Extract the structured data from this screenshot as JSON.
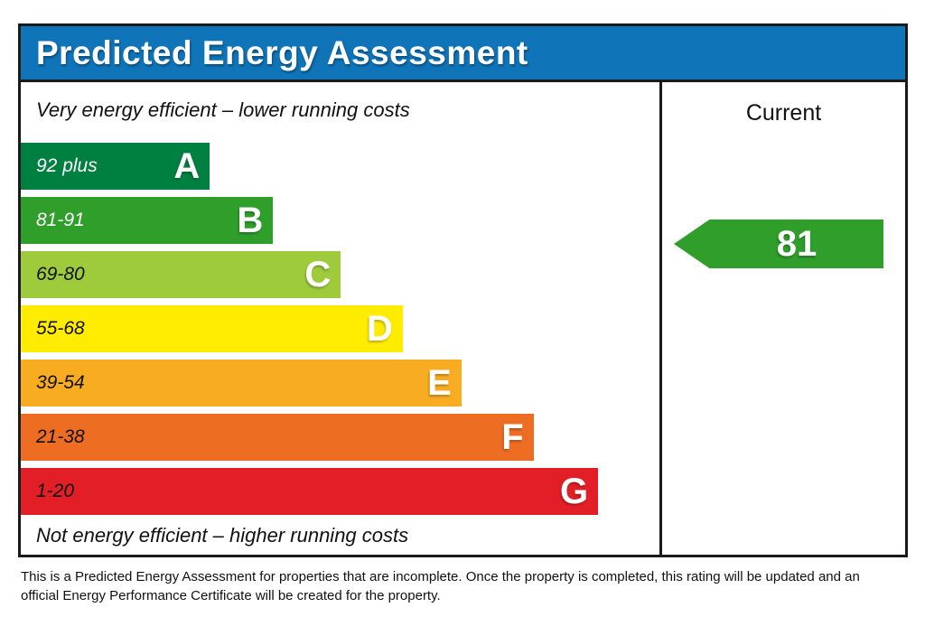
{
  "title": "Predicted Energy Assessment",
  "colors": {
    "header_blue": "#0f74b8",
    "border_black": "#1a1a1a",
    "arrow_green": "#2f9e2b"
  },
  "chart": {
    "top_caption": "Very energy efficient – lower running costs",
    "bottom_caption": "Not energy efficient – higher running costs",
    "column_header": "Current",
    "bands": [
      {
        "letter": "A",
        "range": "92 plus",
        "color": "#008040",
        "width_pct": 29.6,
        "range_text_color": "#ffffff"
      },
      {
        "letter": "B",
        "range": "81-91",
        "color": "#2f9e2b",
        "width_pct": 39.5,
        "range_text_color": "#ffffff"
      },
      {
        "letter": "C",
        "range": "69-80",
        "color": "#9dcb3c",
        "width_pct": 50.1,
        "range_text_color": "#111111"
      },
      {
        "letter": "D",
        "range": "55-68",
        "color": "#ffec00",
        "width_pct": 59.8,
        "range_text_color": "#111111"
      },
      {
        "letter": "E",
        "range": "39-54",
        "color": "#f7ac21",
        "width_pct": 69.0,
        "range_text_color": "#111111"
      },
      {
        "letter": "F",
        "range": "21-38",
        "color": "#ed6d23",
        "width_pct": 80.3,
        "range_text_color": "#111111"
      },
      {
        "letter": "G",
        "range": "1-20",
        "color": "#e21f26",
        "width_pct": 90.4,
        "range_text_color": "#111111"
      }
    ],
    "current": {
      "value": "81",
      "band": "B",
      "color": "#2f9e2b"
    }
  },
  "footer": {
    "line1": "This is a Predicted Energy Assessment for properties that are incomplete. Once the property is completed, this rating will be updated and an",
    "line2": "official Energy Performance Certificate will be created for the property."
  },
  "chart_data": {
    "type": "bar",
    "title": "Predicted Energy Assessment",
    "categories": [
      "A",
      "B",
      "C",
      "D",
      "E",
      "F",
      "G"
    ],
    "tick_labels": [
      "92 plus",
      "81-91",
      "69-80",
      "55-68",
      "39-54",
      "21-38",
      "1-20"
    ],
    "values": [
      29.6,
      39.5,
      50.1,
      59.8,
      69.0,
      80.3,
      90.4
    ],
    "bar_colors": [
      "#008040",
      "#2f9e2b",
      "#9dcb3c",
      "#ffec00",
      "#f7ac21",
      "#ed6d23",
      "#e21f26"
    ],
    "annotations": [
      "Very energy efficient – lower running costs",
      "Not energy efficient – higher running costs",
      "Current"
    ],
    "current_rating": {
      "value": 81,
      "band": "B"
    },
    "orientation": "horizontal",
    "grid": false,
    "legend": false
  }
}
